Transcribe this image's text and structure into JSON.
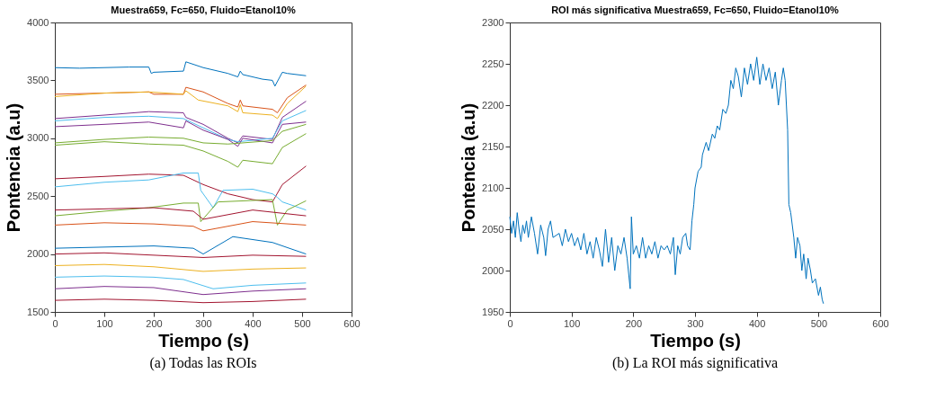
{
  "chart_data": [
    {
      "type": "line",
      "title": "Muestra659, Fc=650, Fluido=Etanol10%",
      "xlabel": "Tiempo (s)",
      "ylabel": "Pontencia (a.u)",
      "annotations": [
        "(a)  Todas las ROIs"
      ],
      "xlim": [
        0,
        600
      ],
      "xticks": [
        0,
        100,
        200,
        300,
        400,
        500,
        600
      ],
      "ylim": [
        1500,
        4000
      ],
      "yticks": [
        1500,
        2000,
        2500,
        3000,
        3500,
        4000
      ],
      "grid": false,
      "legend": false,
      "marker": "none",
      "line_style": "solid",
      "series": [
        {
          "color": "#0072bd",
          "x": [
            0,
            50,
            100,
            150,
            190,
            195,
            200,
            260,
            265,
            300,
            350,
            370,
            375,
            380,
            420,
            440,
            445,
            460,
            470,
            508
          ],
          "values": [
            3610,
            3605,
            3610,
            3615,
            3615,
            3560,
            3570,
            3580,
            3660,
            3610,
            3560,
            3530,
            3580,
            3550,
            3510,
            3500,
            3450,
            3570,
            3560,
            3540
          ]
        },
        {
          "color": "#d95319",
          "x": [
            0,
            100,
            190,
            200,
            260,
            265,
            300,
            350,
            370,
            375,
            380,
            440,
            450,
            470,
            508
          ],
          "values": [
            3380,
            3390,
            3400,
            3380,
            3380,
            3440,
            3400,
            3300,
            3270,
            3330,
            3280,
            3250,
            3220,
            3350,
            3460
          ]
        },
        {
          "color": "#edb120",
          "x": [
            0,
            100,
            190,
            260,
            265,
            290,
            350,
            370,
            375,
            380,
            440,
            450,
            470,
            508
          ],
          "values": [
            3360,
            3390,
            3400,
            3380,
            3410,
            3330,
            3280,
            3230,
            3290,
            3220,
            3200,
            3170,
            3300,
            3450
          ]
        },
        {
          "color": "#7e2f8e",
          "x": [
            0,
            100,
            190,
            260,
            265,
            300,
            350,
            370,
            380,
            440,
            460,
            508
          ],
          "values": [
            3170,
            3200,
            3230,
            3220,
            3180,
            3120,
            3000,
            2960,
            3020,
            2990,
            3180,
            3320
          ]
        },
        {
          "color": "#4dbeee",
          "x": [
            0,
            100,
            190,
            260,
            300,
            350,
            370,
            440,
            460,
            508
          ],
          "values": [
            3150,
            3180,
            3190,
            3170,
            3090,
            2990,
            2970,
            3000,
            3150,
            3240
          ]
        },
        {
          "color": "#7e2f8e",
          "x": [
            0,
            100,
            190,
            260,
            265,
            300,
            350,
            370,
            380,
            440,
            460,
            508
          ],
          "values": [
            3100,
            3120,
            3140,
            3090,
            3150,
            3070,
            2990,
            2930,
            3000,
            2960,
            3120,
            3140
          ]
        },
        {
          "color": "#77ac30",
          "x": [
            0,
            100,
            190,
            260,
            300,
            350,
            380,
            440,
            460,
            508
          ],
          "values": [
            2960,
            2990,
            3010,
            3000,
            2960,
            2950,
            2960,
            2980,
            3060,
            3120
          ]
        },
        {
          "color": "#77ac30",
          "x": [
            0,
            100,
            190,
            260,
            300,
            350,
            370,
            380,
            440,
            460,
            508
          ],
          "values": [
            2940,
            2970,
            2950,
            2940,
            2890,
            2800,
            2750,
            2810,
            2780,
            2920,
            3040
          ]
        },
        {
          "color": "#a2142f",
          "x": [
            0,
            100,
            190,
            260,
            300,
            350,
            400,
            440,
            460,
            508
          ],
          "values": [
            2650,
            2670,
            2690,
            2680,
            2600,
            2520,
            2470,
            2450,
            2600,
            2760
          ]
        },
        {
          "color": "#4dbeee",
          "x": [
            0,
            100,
            190,
            260,
            290,
            295,
            320,
            340,
            400,
            440,
            450,
            460,
            508
          ],
          "values": [
            2580,
            2620,
            2640,
            2700,
            2700,
            2550,
            2400,
            2550,
            2560,
            2520,
            2490,
            2450,
            2380
          ]
        },
        {
          "color": "#77ac30",
          "x": [
            0,
            100,
            190,
            260,
            290,
            295,
            330,
            440,
            450,
            470,
            508
          ],
          "values": [
            2330,
            2370,
            2400,
            2440,
            2440,
            2280,
            2450,
            2470,
            2250,
            2380,
            2460
          ]
        },
        {
          "color": "#a2142f",
          "x": [
            0,
            100,
            200,
            280,
            300,
            400,
            508
          ],
          "values": [
            2380,
            2390,
            2400,
            2370,
            2300,
            2380,
            2330
          ]
        },
        {
          "color": "#d95319",
          "x": [
            0,
            100,
            200,
            280,
            300,
            400,
            508
          ],
          "values": [
            2250,
            2270,
            2260,
            2240,
            2200,
            2280,
            2250
          ]
        },
        {
          "color": "#0072bd",
          "x": [
            0,
            100,
            200,
            280,
            300,
            360,
            440,
            508
          ],
          "values": [
            2050,
            2060,
            2070,
            2050,
            2000,
            2150,
            2100,
            2000
          ]
        },
        {
          "color": "#a2142f",
          "x": [
            0,
            100,
            200,
            300,
            400,
            508
          ],
          "values": [
            2000,
            2010,
            1990,
            1970,
            1990,
            1980
          ]
        },
        {
          "color": "#edb120",
          "x": [
            0,
            100,
            200,
            300,
            400,
            508
          ],
          "values": [
            1900,
            1910,
            1890,
            1850,
            1870,
            1880
          ]
        },
        {
          "color": "#4dbeee",
          "x": [
            0,
            100,
            200,
            260,
            320,
            400,
            508
          ],
          "values": [
            1800,
            1810,
            1800,
            1780,
            1700,
            1730,
            1750
          ]
        },
        {
          "color": "#7e2f8e",
          "x": [
            0,
            100,
            200,
            300,
            400,
            508
          ],
          "values": [
            1700,
            1720,
            1710,
            1650,
            1680,
            1700
          ]
        },
        {
          "color": "#a2142f",
          "x": [
            0,
            100,
            200,
            300,
            400,
            508
          ],
          "values": [
            1600,
            1610,
            1600,
            1580,
            1590,
            1610
          ]
        }
      ]
    },
    {
      "type": "line",
      "title": "ROI más significativa Muestra659, Fc=650, Fluido=Etanol10%",
      "xlabel": "Tiempo (s)",
      "ylabel": "Pontencia (a.u)",
      "annotations": [
        "(b)  La ROI más significativa"
      ],
      "xlim": [
        0,
        600
      ],
      "xticks": [
        0,
        100,
        200,
        300,
        400,
        500,
        600
      ],
      "ylim": [
        1950,
        2300
      ],
      "yticks": [
        1950,
        2000,
        2050,
        2100,
        2150,
        2200,
        2250,
        2300
      ],
      "grid": false,
      "legend": false,
      "marker": "none",
      "line_style": "solid",
      "series": [
        {
          "color": "#0072bd",
          "x": [
            0,
            3,
            6,
            9,
            12,
            15,
            18,
            21,
            24,
            27,
            30,
            35,
            40,
            45,
            50,
            55,
            58,
            62,
            66,
            70,
            80,
            85,
            90,
            95,
            100,
            105,
            110,
            115,
            120,
            125,
            130,
            135,
            140,
            145,
            150,
            155,
            160,
            165,
            170,
            175,
            180,
            185,
            190,
            195,
            197,
            200,
            205,
            210,
            215,
            220,
            225,
            230,
            235,
            240,
            245,
            250,
            255,
            260,
            265,
            268,
            272,
            276,
            280,
            285,
            288,
            292,
            295,
            298,
            300,
            305,
            310,
            312,
            318,
            322,
            328,
            332,
            336,
            340,
            345,
            350,
            354,
            358,
            362,
            366,
            370,
            375,
            380,
            385,
            390,
            395,
            400,
            405,
            410,
            415,
            420,
            425,
            430,
            435,
            440,
            443,
            446,
            450,
            452,
            455,
            460,
            463,
            466,
            470,
            473,
            476,
            480,
            483,
            487,
            490,
            495,
            500,
            503,
            506,
            508
          ],
          "values": [
            2065,
            2045,
            2060,
            2040,
            2070,
            2050,
            2035,
            2055,
            2045,
            2060,
            2040,
            2065,
            2045,
            2020,
            2055,
            2040,
            2018,
            2050,
            2060,
            2040,
            2045,
            2030,
            2050,
            2035,
            2045,
            2030,
            2040,
            2025,
            2045,
            2020,
            2035,
            2015,
            2040,
            2025,
            2005,
            2050,
            2010,
            2040,
            2000,
            2030,
            2020,
            2040,
            2015,
            1978,
            2065,
            2020,
            2030,
            2015,
            2040,
            2015,
            2030,
            2020,
            2035,
            2015,
            2030,
            2025,
            2030,
            2020,
            2040,
            1995,
            2030,
            2020,
            2040,
            2045,
            2030,
            2025,
            2060,
            2080,
            2100,
            2120,
            2125,
            2140,
            2155,
            2145,
            2165,
            2160,
            2175,
            2170,
            2195,
            2190,
            2200,
            2230,
            2220,
            2245,
            2235,
            2210,
            2245,
            2225,
            2250,
            2230,
            2258,
            2225,
            2250,
            2230,
            2245,
            2220,
            2240,
            2200,
            2230,
            2245,
            2230,
            2170,
            2080,
            2070,
            2040,
            2015,
            2040,
            2030,
            2000,
            2020,
            1990,
            2015,
            2000,
            1985,
            1990,
            1970,
            1980,
            1965,
            1960
          ]
        }
      ]
    }
  ]
}
